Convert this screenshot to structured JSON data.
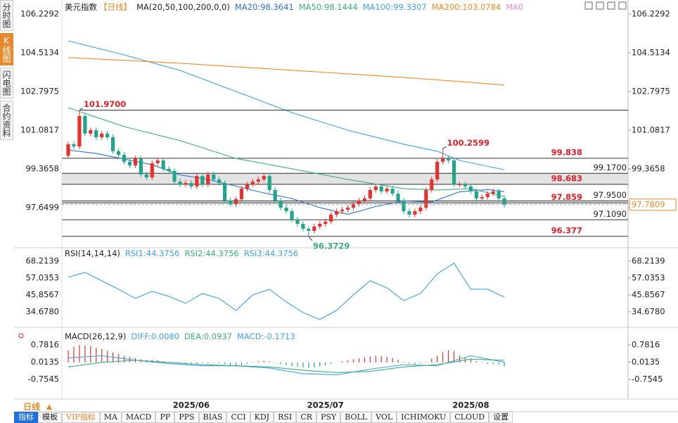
{
  "chart_data": {
    "type": "candlestick",
    "sidebar": [
      "分时图",
      "K线图",
      "闪电图",
      "合约资料"
    ],
    "active_tab": 1,
    "title": "美元指数",
    "period": "【日线】",
    "ma_label": "MA(20,50,100,200,0,0)",
    "up_color": "#e8302c",
    "down_color": "#1fa68a",
    "ylim": [
      95.933,
      106.541
    ],
    "yticks": [
      106.2292,
      104.5134,
      102.7975,
      101.0817,
      99.3658,
      97.6499
    ],
    "candles": {
      "open": [
        99.95,
        100.46,
        100.36,
        101.71,
        100.93,
        101.08,
        100.77,
        100.93,
        100.77,
        100.15,
        99.99,
        99.68,
        99.52,
        99.83,
        99.12,
        98.99,
        99.62,
        99.74,
        99.37,
        99.27,
        98.8,
        98.68,
        98.74,
        98.59,
        99.05,
        98.68,
        99.12,
        98.9,
        98.74,
        97.96,
        97.81,
        98.02,
        98.49,
        98.68,
        98.8,
        98.9,
        99.05,
        98.43,
        97.96,
        97.65,
        97.49,
        97.12,
        96.93,
        96.71,
        96.62,
        96.81,
        96.93,
        97.03,
        97.34,
        97.49,
        97.56,
        97.65,
        97.81,
        97.96,
        98.06,
        98.43,
        98.59,
        98.37,
        98.49,
        98.27,
        97.96,
        97.49,
        97.34,
        97.49,
        97.65,
        98.43,
        98.9,
        99.68,
        99.83,
        99.74,
        98.68,
        98.68,
        98.59,
        98.37,
        98.06,
        98.12,
        98.27,
        98.37,
        98.06
      ],
      "high": [
        100.58,
        100.58,
        101.97,
        101.83,
        101.2,
        101.2,
        101.05,
        101.05,
        100.89,
        100.27,
        100.11,
        99.8,
        99.95,
        99.95,
        99.24,
        99.74,
        99.86,
        99.86,
        99.49,
        99.39,
        98.92,
        98.86,
        98.86,
        99.17,
        99.17,
        99.24,
        99.24,
        99.02,
        98.86,
        98.08,
        98.14,
        98.61,
        98.8,
        98.92,
        99.02,
        99.17,
        99.17,
        98.55,
        98.08,
        97.77,
        97.61,
        97.24,
        97.05,
        96.83,
        96.93,
        97.05,
        97.15,
        97.46,
        97.61,
        97.68,
        97.77,
        97.93,
        98.08,
        98.18,
        98.55,
        98.71,
        98.71,
        98.61,
        98.61,
        98.39,
        98.08,
        97.61,
        97.61,
        97.77,
        98.55,
        99.02,
        99.8,
        100.26,
        99.95,
        99.86,
        98.8,
        98.8,
        98.71,
        98.49,
        98.24,
        98.39,
        98.49,
        98.49,
        98.18
      ],
      "low": [
        99.83,
        100.24,
        100.24,
        100.81,
        100.81,
        100.65,
        100.65,
        100.65,
        100.03,
        99.87,
        99.56,
        99.4,
        99.4,
        99.0,
        98.87,
        98.87,
        99.5,
        99.25,
        99.15,
        98.68,
        98.56,
        98.56,
        98.47,
        98.47,
        98.56,
        98.56,
        98.78,
        98.62,
        97.84,
        97.69,
        97.69,
        97.9,
        98.37,
        98.56,
        98.68,
        98.78,
        98.31,
        97.84,
        97.53,
        97.37,
        97.0,
        96.81,
        96.59,
        96.37,
        96.5,
        96.69,
        96.81,
        96.91,
        97.22,
        97.37,
        97.44,
        97.53,
        97.69,
        97.84,
        97.94,
        98.31,
        98.25,
        98.25,
        98.15,
        97.84,
        97.37,
        97.22,
        97.22,
        97.37,
        97.53,
        98.31,
        98.78,
        99.56,
        99.62,
        98.56,
        98.56,
        98.47,
        98.25,
        97.94,
        97.94,
        98.0,
        98.15,
        97.94,
        97.66
      ],
      "close": [
        100.46,
        100.36,
        101.71,
        100.93,
        101.08,
        100.77,
        100.93,
        100.77,
        100.15,
        99.99,
        99.68,
        99.52,
        99.83,
        99.12,
        98.99,
        99.62,
        99.74,
        99.37,
        99.27,
        98.8,
        98.68,
        98.74,
        98.59,
        99.05,
        98.68,
        99.12,
        98.9,
        98.74,
        97.96,
        97.81,
        98.02,
        98.49,
        98.68,
        98.8,
        98.9,
        99.05,
        98.43,
        97.96,
        97.65,
        97.49,
        97.12,
        96.93,
        96.71,
        96.62,
        96.81,
        96.93,
        97.03,
        97.34,
        97.49,
        97.56,
        97.65,
        97.81,
        97.96,
        98.06,
        98.43,
        98.59,
        98.37,
        98.49,
        98.27,
        97.96,
        97.49,
        97.34,
        97.49,
        97.65,
        98.43,
        98.9,
        99.68,
        99.83,
        99.74,
        98.68,
        98.68,
        98.59,
        98.37,
        98.06,
        98.12,
        98.27,
        98.37,
        98.06,
        97.78
      ]
    },
    "series": [
      {
        "name": "MA20:98.3641",
        "color": "#2f6fd0",
        "x": [
          0,
          5,
          10,
          15,
          20,
          25,
          30,
          35,
          40,
          45,
          50,
          55,
          60,
          65,
          70,
          75,
          78
        ],
        "values": [
          100.2,
          100.05,
          99.8,
          99.55,
          99.1,
          98.9,
          98.6,
          98.3,
          98.05,
          97.65,
          97.35,
          97.7,
          97.95,
          97.9,
          98.35,
          98.45,
          98.36
        ]
      },
      {
        "name": "MA50:98.1444",
        "color": "#3aae7a",
        "x": [
          0,
          10,
          20,
          30,
          40,
          50,
          60,
          66,
          72,
          78
        ],
        "values": [
          102.08,
          101.24,
          100.62,
          99.83,
          99.37,
          98.9,
          98.49,
          98.43,
          98.49,
          98.14
        ]
      },
      {
        "name": "MA100:99.3307",
        "color": "#3fa0e8",
        "x": [
          0,
          10,
          20,
          30,
          40,
          50,
          60,
          66,
          70,
          78
        ],
        "values": [
          105.04,
          104.42,
          103.73,
          102.8,
          101.86,
          101.08,
          100.46,
          100.15,
          99.74,
          99.33
        ]
      },
      {
        "name": "MA200:103.0784",
        "color": "#ee8a2c",
        "x": [
          0,
          10,
          20,
          30,
          40,
          50,
          60,
          70,
          78
        ],
        "values": [
          104.3,
          104.18,
          104.05,
          103.89,
          103.74,
          103.58,
          103.42,
          103.24,
          103.08
        ]
      },
      {
        "name": "MA0",
        "color": "#e38fe0"
      }
    ],
    "levels": [
      {
        "value": 99.838
      },
      {
        "value": 99.17,
        "label": "99.1700",
        "band": true
      },
      {
        "value": 98.683
      },
      {
        "value": 97.95,
        "label": "97.9500",
        "band": true
      },
      {
        "value": 97.859
      },
      {
        "value": 97.109,
        "label": "97.1090"
      },
      {
        "value": 96.377
      }
    ],
    "level_color": "#e0202a",
    "extremes": [
      {
        "index": 2,
        "value": 101.97,
        "label": "101.9700",
        "color": "#e0202a",
        "line": true
      },
      {
        "index": 67,
        "value": 100.2599,
        "color": "#e0202a"
      },
      {
        "index": 43,
        "value": 96.3729,
        "color": "#3aae7a"
      }
    ],
    "last_price": 97.7809,
    "x_labels": [
      {
        "index": 22,
        "label": "2025/06"
      },
      {
        "index": 46,
        "label": "2025/07"
      },
      {
        "index": 72,
        "label": "2025/08"
      }
    ],
    "rsi": {
      "title": "RSI(14,14,14)",
      "ylim": [
        25.83,
        75.67
      ],
      "yticks": [
        68.2139,
        57.0353,
        45.8567,
        {
          "value": 34.678,
          "label": "34.6780"
        }
      ],
      "series": [
        {
          "name": "RSI1:44.3756",
          "color": "#3fa0e8",
          "x": [
            0,
            3,
            6,
            9,
            12,
            15,
            18,
            21,
            24,
            27,
            30,
            33,
            36,
            39,
            42,
            45,
            48,
            51,
            54,
            57,
            60,
            63,
            66,
            69,
            72,
            75,
            78
          ],
          "values": [
            57.5,
            60.8,
            55.2,
            49.6,
            43.5,
            48.2,
            44.9,
            40.3,
            46.8,
            43.5,
            35.6,
            45.9,
            49.6,
            41.2,
            34.2,
            29.6,
            35.6,
            45.9,
            55.2,
            50.5,
            42.1,
            46.8,
            59.8,
            66.8,
            49.6,
            49.6,
            44.38
          ]
        },
        {
          "name": "RSI2:44.3756",
          "color": "#3aae7a"
        },
        {
          "name": "RSI3:44.3756",
          "color": "#3fa0e8"
        }
      ]
    },
    "macd": {
      "title": "MACD(26,12,9)",
      "ylim": [
        -1.57,
        1.41
      ],
      "yticks": [
        0.7816,
        0.0135,
        -0.7545
      ],
      "series": [
        {
          "name": "DIFF:0.0080",
          "color": "#3fa0e8",
          "x": [
            0,
            6,
            12,
            18,
            24,
            30,
            36,
            42,
            48,
            54,
            60,
            66,
            72,
            78
          ],
          "values": [
            0.2,
            0.3,
            0.1,
            -0.05,
            -0.15,
            -0.15,
            -0.25,
            -0.5,
            -0.55,
            -0.3,
            -0.1,
            -0.15,
            0.3,
            0.008
          ]
        },
        {
          "name": "DEA:0.0937",
          "color": "#3aae7a",
          "x": [
            0,
            6,
            12,
            18,
            24,
            30,
            36,
            42,
            48,
            54,
            60,
            66,
            72,
            78
          ],
          "values": [
            -0.2,
            0.0,
            0.1,
            0.0,
            -0.1,
            -0.15,
            -0.2,
            -0.35,
            -0.45,
            -0.4,
            -0.2,
            -0.1,
            0.15,
            0.0937
          ]
        }
      ],
      "histogram_name": "MACD:-0.1713",
      "histogram_color": "#3fa0e8",
      "histogram": [
        0.55,
        0.7,
        0.78,
        0.75,
        0.72,
        0.65,
        0.6,
        0.52,
        0.45,
        0.38,
        0.3,
        0.25,
        0.2,
        0.15,
        0.1,
        0.12,
        0.1,
        0.06,
        0.03,
        -0.02,
        -0.05,
        -0.08,
        -0.06,
        -0.09,
        -0.04,
        -0.05,
        -0.02,
        -0.04,
        -0.08,
        -0.15,
        -0.18,
        -0.12,
        -0.05,
        0.02,
        0.06,
        0.08,
        0.05,
        -0.02,
        -0.08,
        -0.12,
        -0.16,
        -0.2,
        -0.22,
        -0.25,
        -0.22,
        -0.18,
        -0.12,
        -0.06,
        0.0,
        0.05,
        0.1,
        0.14,
        0.18,
        0.22,
        0.26,
        0.3,
        0.28,
        0.25,
        0.2,
        0.12,
        0.02,
        -0.06,
        -0.08,
        -0.05,
        0.02,
        0.18,
        0.3,
        0.45,
        0.55,
        0.5,
        0.3,
        0.2,
        0.12,
        0.05,
        -0.02,
        -0.06,
        -0.08,
        -0.1,
        -0.17
      ]
    },
    "period_selector": "日线",
    "toolbar": [
      "指标",
      "模板",
      "VIP指标",
      "MA",
      "MACD",
      "PP",
      "PPS",
      "BIAS",
      "CCI",
      "KDJ",
      "RSI",
      "CR",
      "PSY",
      "BOLL",
      "VOL",
      "ICHIMOKU",
      "CLOUD",
      "设置"
    ],
    "toolbar_active": 0,
    "toolbar_vip": 2
  }
}
